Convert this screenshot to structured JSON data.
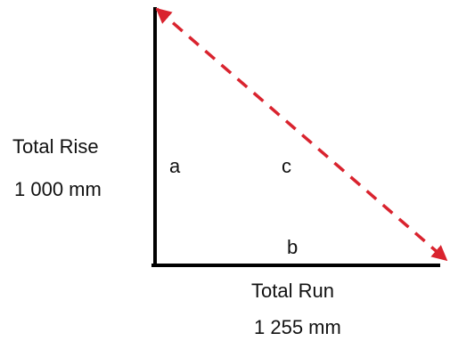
{
  "diagram": {
    "rise": {
      "title": "Total Rise",
      "value": "1 000 mm"
    },
    "run": {
      "title": "Total Run",
      "value": "1 255 mm"
    },
    "sides": {
      "a": "a",
      "b": "b",
      "c": "c"
    }
  },
  "colors": {
    "lines": "#000000",
    "hypotenuse": "#d9232e",
    "text": "#111111"
  }
}
